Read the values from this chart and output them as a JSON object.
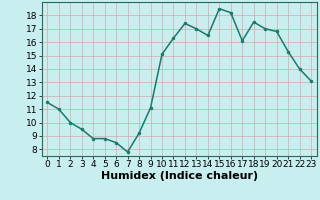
{
  "x": [
    0,
    1,
    2,
    3,
    4,
    5,
    6,
    7,
    8,
    9,
    10,
    11,
    12,
    13,
    14,
    15,
    16,
    17,
    18,
    19,
    20,
    21,
    22,
    23
  ],
  "y": [
    11.5,
    11.0,
    10.0,
    9.5,
    8.8,
    8.8,
    8.5,
    7.8,
    9.2,
    11.1,
    15.1,
    16.3,
    17.4,
    17.0,
    16.5,
    18.5,
    18.2,
    16.1,
    17.5,
    17.0,
    16.8,
    15.3,
    14.0,
    13.1
  ],
  "xlabel": "Humidex (Indice chaleur)",
  "ylim": [
    7.5,
    19.0
  ],
  "xlim": [
    -0.5,
    23.5
  ],
  "yticks": [
    8,
    9,
    10,
    11,
    12,
    13,
    14,
    15,
    16,
    17,
    18
  ],
  "xticks": [
    0,
    1,
    2,
    3,
    4,
    5,
    6,
    7,
    8,
    9,
    10,
    11,
    12,
    13,
    14,
    15,
    16,
    17,
    18,
    19,
    20,
    21,
    22,
    23
  ],
  "line_color": "#1a7a6a",
  "marker": "o",
  "marker_size": 2.0,
  "bg_color": "#c8eef0",
  "grid_color": "#d4a8a8",
  "xlabel_fontsize": 8,
  "tick_fontsize": 6.5,
  "linewidth": 1.1
}
